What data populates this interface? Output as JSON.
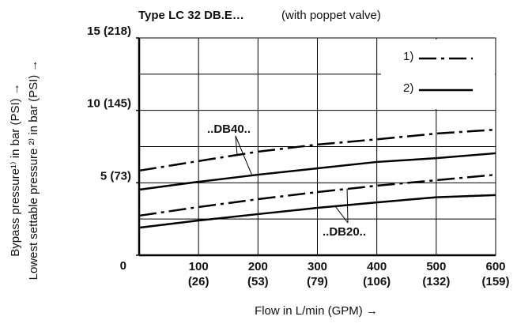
{
  "chart_data": {
    "type": "line",
    "title": "Type LC 32 DB.E…",
    "subtitle": "(with poppet valve)",
    "x_label": "Flow in L/min (GPM) →",
    "y_label": "Bypass pressure¹⁾ in bar (PSI) →",
    "y_label2": "Lowest settable pressure ²⁾ in bar (PSI) →",
    "x": [
      0,
      100,
      200,
      300,
      400,
      500,
      600
    ],
    "xlim": [
      0,
      600
    ],
    "ylim": [
      0,
      15
    ],
    "xticks": [
      {
        "value": 100,
        "label": "100",
        "label2": "(26)"
      },
      {
        "value": 200,
        "label": "200",
        "label2": "(53)"
      },
      {
        "value": 300,
        "label": "300",
        "label2": "(79)"
      },
      {
        "value": 400,
        "label": "400",
        "label2": "(106)"
      },
      {
        "value": 500,
        "label": "500",
        "label2": "(132)"
      },
      {
        "value": 600,
        "label": "600",
        "label2": "(159)"
      }
    ],
    "yticks": [
      0,
      {
        "value": 5,
        "label": "5 (73)"
      },
      {
        "value": 10,
        "label": "10 (145)"
      },
      {
        "value": 15,
        "label": "15 (218)"
      }
    ],
    "y_gridlines": [
      2.5,
      5,
      7.5,
      10,
      12.5
    ],
    "grid": true,
    "legend": [
      {
        "label": "1)",
        "dash": "dash-dot"
      },
      {
        "label": "2)",
        "dash": "solid"
      }
    ],
    "annotations": [
      "..DB40..",
      "..DB20.."
    ],
    "series": [
      {
        "color": "#000000",
        "dash": "dash-dot",
        "values": [
          5.84,
          6.5,
          7.15,
          7.64,
          8.0,
          8.4,
          8.67
        ]
      },
      {
        "color": "#000000",
        "dash": "solid",
        "values": [
          4.53,
          5.07,
          5.56,
          6.0,
          6.44,
          6.7,
          7.04
        ]
      },
      {
        "color": "#000000",
        "dash": "dash-dot",
        "values": [
          2.73,
          3.33,
          3.87,
          4.36,
          4.8,
          5.18,
          5.56
        ]
      },
      {
        "color": "#000000",
        "dash": "solid",
        "values": [
          1.9,
          2.4,
          2.84,
          3.27,
          3.65,
          4.0,
          4.15
        ]
      }
    ]
  }
}
